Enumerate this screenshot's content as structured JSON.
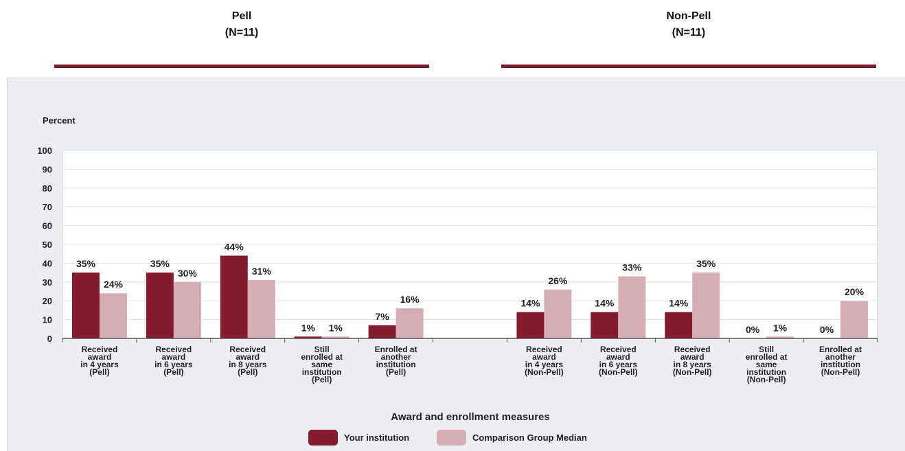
{
  "groups": [
    {
      "name": "Pell",
      "n": "(N=11)"
    },
    {
      "name": "Non-Pell",
      "n": "(N=11)"
    }
  ],
  "colors": {
    "accent": "#7f1a2e",
    "series1": "#861a2e",
    "series2": "#d7adb6"
  },
  "chart_data": {
    "type": "bar",
    "ylabel": "Percent",
    "xlabel": "Award and enrollment measures",
    "ylim": [
      0,
      100
    ],
    "yticks": [
      0,
      10,
      20,
      30,
      40,
      50,
      60,
      70,
      80,
      90,
      100
    ],
    "grid": true,
    "legend_position": "bottom",
    "categories": [
      [
        "Received",
        "award",
        "in 4 years",
        "(Pell)"
      ],
      [
        "Received",
        "award",
        "in 6 years",
        "(Pell)"
      ],
      [
        "Received",
        "award",
        "in 8 years",
        "(Pell)"
      ],
      [
        "Still",
        "enrolled at",
        "same",
        "institution",
        "(Pell)"
      ],
      [
        "Enrolled at",
        "another",
        "institution",
        "(Pell)"
      ],
      [],
      [
        "Received",
        "award",
        "in 4 years",
        "(Non-Pell)"
      ],
      [
        "Received",
        "award",
        "in 6 years",
        "(Non-Pell)"
      ],
      [
        "Received",
        "award",
        "in 8 years",
        "(Non-Pell)"
      ],
      [
        "Still",
        "enrolled at",
        "same",
        "institution",
        "(Non-Pell)"
      ],
      [
        "Enrolled at",
        "another",
        "institution",
        "(Non-Pell)"
      ]
    ],
    "series": [
      {
        "name": "Your institution",
        "values": [
          35,
          35,
          44,
          1,
          7,
          null,
          14,
          14,
          14,
          0,
          0
        ],
        "labels": [
          "35%",
          "35%",
          "44%",
          "1%",
          "7%",
          "",
          "14%",
          "14%",
          "14%",
          "0%",
          "0%"
        ]
      },
      {
        "name": "Comparison Group Median",
        "values": [
          24,
          30,
          31,
          1,
          16,
          null,
          26,
          33,
          35,
          1,
          20
        ],
        "labels": [
          "24%",
          "30%",
          "31%",
          "1%",
          "16%",
          "",
          "26%",
          "33%",
          "35%",
          "1%",
          "20%"
        ]
      }
    ]
  }
}
